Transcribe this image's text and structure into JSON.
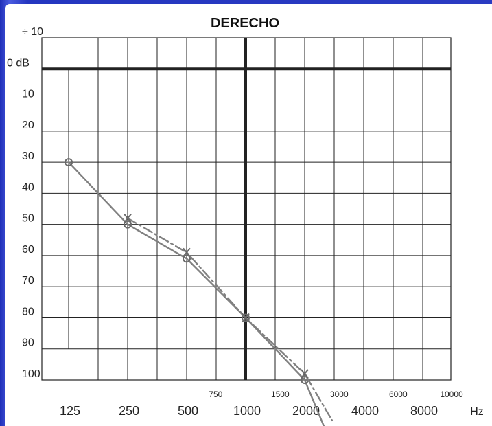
{
  "chart_data": {
    "type": "line",
    "title": "DERECHO",
    "y_unit_label": "0 dB",
    "x_unit_label": "Hz",
    "x_major_ticks": [
      "125",
      "250",
      "500",
      "1000",
      "2000",
      "4000",
      "8000"
    ],
    "x_minor_ticks": [
      "750",
      "1500",
      "3000",
      "6000",
      "10000"
    ],
    "y_ticks": [
      "÷ 10",
      "10",
      "20",
      "30",
      "40",
      "50",
      "60",
      "70",
      "80",
      "90",
      "100"
    ],
    "y_tick_values": [
      -10,
      10,
      20,
      30,
      40,
      50,
      60,
      70,
      80,
      90,
      100
    ],
    "ylim": [
      -10,
      100
    ],
    "y_inverted": true,
    "x_scale": "log2",
    "grid": true,
    "series": [
      {
        "marker": "circle",
        "line_style": "solid",
        "color": "#808080",
        "x": [
          125,
          250,
          500,
          1000,
          2000
        ],
        "y": [
          30,
          50,
          61,
          80,
          100
        ],
        "continues_below_chart": true
      },
      {
        "marker": "cross",
        "line_style": "dashed",
        "color": "#808080",
        "x": [
          250,
          500,
          1000,
          2000
        ],
        "y": [
          48,
          59,
          80,
          98
        ],
        "continues_below_chart": true
      }
    ]
  }
}
